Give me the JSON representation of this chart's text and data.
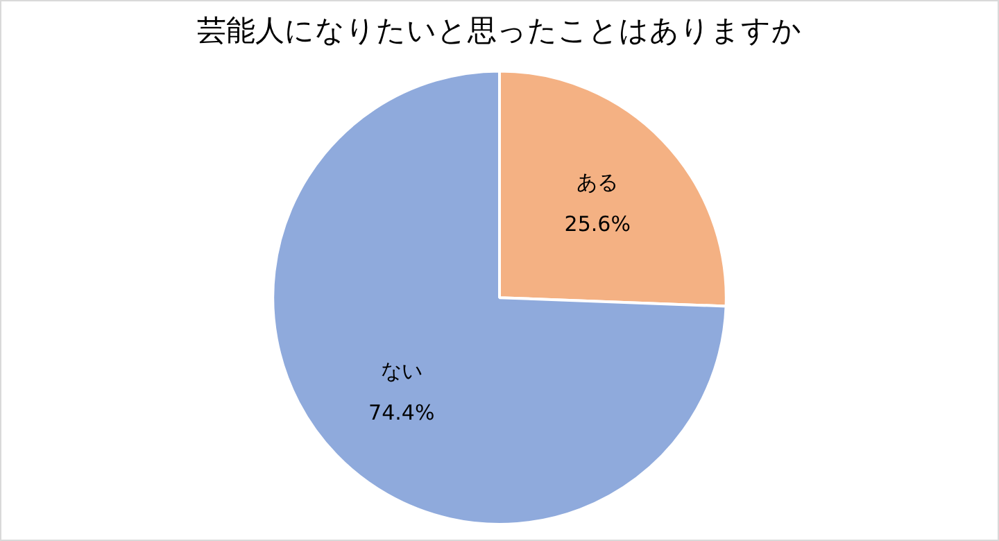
{
  "chart_data": {
    "type": "pie",
    "title": "芸能人になりたいと思ったことはありますか",
    "categories": [
      "ある",
      "ない"
    ],
    "values": [
      25.6,
      74.4
    ],
    "colors": [
      "#f4b183",
      "#8faadc"
    ],
    "value_labels": [
      "25.6%",
      "74.4%"
    ],
    "legend": false
  }
}
